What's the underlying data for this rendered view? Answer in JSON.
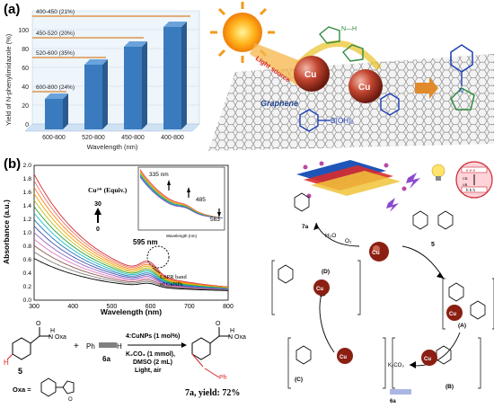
{
  "panel_a": {
    "label": "(a)",
    "bars": {
      "ylabel": "Yield of N-phenylimidazole (%)",
      "xlabel": "Wavelength (nm)",
      "yticks": [
        "0",
        "20",
        "40",
        "60",
        "80",
        "100"
      ],
      "annotations": [
        "400-450 (21%)",
        "450-520 (20%)",
        "520-600 (35%)",
        "600-800 (24%)"
      ],
      "colors": {
        "bar_front": "#3a7bbf",
        "bar_side": "#2a5a8f",
        "bar_top": "#6aa3db",
        "annot_line": "#d9822b",
        "floor": "#cfe2f3"
      }
    },
    "scheme": {
      "light_source": "Light source",
      "graphene": "Graphene",
      "cu1": "Cu",
      "cu2": "Cu",
      "boronic": "B(OH)₂",
      "nh": "N—H",
      "n": "N"
    }
  },
  "panel_b": {
    "label": "(b)",
    "spectra": {
      "ylabel": "Absorbance (a.u.)",
      "xlabel": "Wavelength (nm)",
      "yticks": [
        "0.0",
        "0.2",
        "0.4",
        "0.6",
        "0.8",
        "1.0",
        "1.2",
        "1.4",
        "1.6",
        "1.8",
        "2.0"
      ],
      "xticks": [
        "300",
        "400",
        "500",
        "600",
        "700",
        "800"
      ],
      "legend_title": "Cu²⁺ (Equiv.)",
      "legend_high": "30",
      "legend_low": "0",
      "peak_label": "595 nm",
      "lspr_label_1": "LSPR band",
      "lspr_label_2": "of CuNPs",
      "inset": {
        "ylabel": "Absorbance (a.u.)",
        "xlabel": "Wavelength (nm)",
        "peak1": "335 nm",
        "peak2": "485",
        "peak3": "563",
        "xticks": [
          "300",
          "350",
          "400",
          "450",
          "500",
          "550",
          "600"
        ],
        "yticks": [
          "0.0",
          "0.1",
          "0.2",
          "0.3",
          "0.4",
          "0.5",
          "0.6",
          "0.7"
        ]
      }
    },
    "reaction": {
      "compound5": "5",
      "plus": "+",
      "oxa": "Oxa",
      "nh": "N",
      "ph": "Ph",
      "reagent6a": "6a",
      "condition1": "4:CuNPs (1 mol%)",
      "condition2": "K₂CO₃ (1 mmol),",
      "condition3": "DMSO (2 mL)",
      "condition4": "Light, air",
      "product": "7a, yield: 72%",
      "oxa_def": "Oxa ="
    },
    "cycle": {
      "h2o": "H₂O",
      "o2": "O₂",
      "cu": "Cu",
      "label_7a": "7a",
      "label_5": "5",
      "label_6a": "6a",
      "k2co3": "K₂CO₃",
      "A": "(A)",
      "B": "(B)",
      "C": "(C)",
      "D": "(D)",
      "cb": "CB",
      "vb": "VB",
      "e": "e e e",
      "h": "h h h"
    }
  }
}
